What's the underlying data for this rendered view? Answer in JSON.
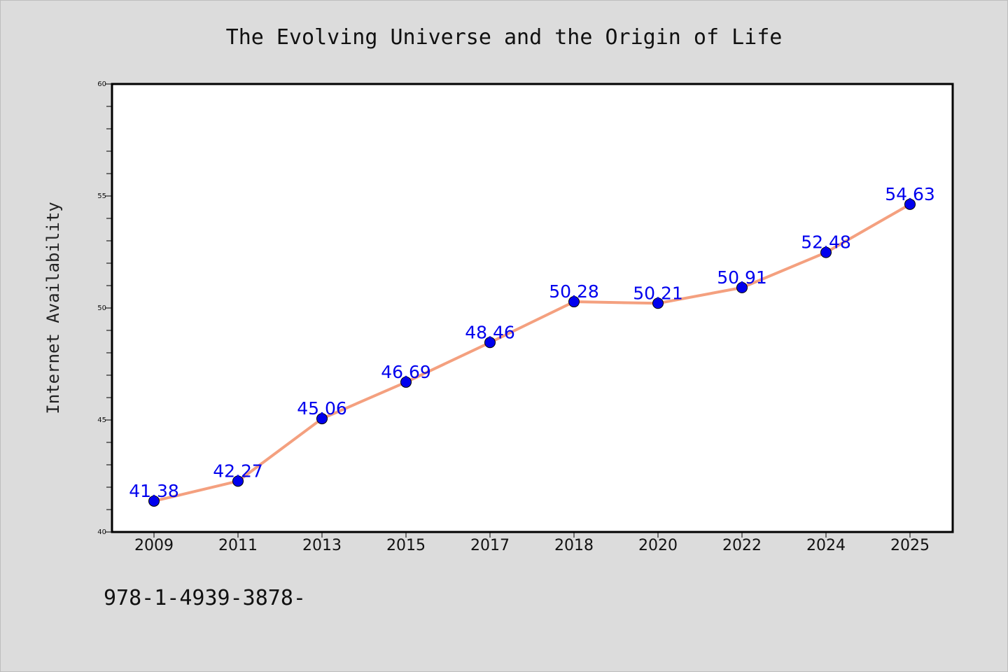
{
  "chart_data": {
    "type": "line",
    "title": "The Evolving Universe and the Origin of Life",
    "xlabel": "",
    "ylabel": "Internet Availability",
    "categories": [
      "2009",
      "2011",
      "2013",
      "2015",
      "2017",
      "2018",
      "2020",
      "2022",
      "2024",
      "2025"
    ],
    "series": [
      {
        "values": [
          41.38,
          42.27,
          45.06,
          46.69,
          48.46,
          50.28,
          50.21,
          50.91,
          52.48,
          54.63
        ],
        "line_color": "#f4a07f",
        "marker_color": "#0000ee",
        "data_labels": [
          "41.38",
          "42.27",
          "45.06",
          "46.69",
          "48.46",
          "50.28",
          "50.21",
          "50.91",
          "52.48",
          "54.63"
        ]
      }
    ],
    "ylim": [
      40,
      60
    ],
    "yticks": [
      "40",
      "45",
      "50",
      "55",
      "60"
    ],
    "grid": false,
    "legend": "none"
  },
  "footer": {
    "text": "978-1-4939-3878-"
  },
  "colors": {
    "background": "#dcdcdc",
    "plot_background": "#ffffff",
    "axis": "#000000"
  }
}
